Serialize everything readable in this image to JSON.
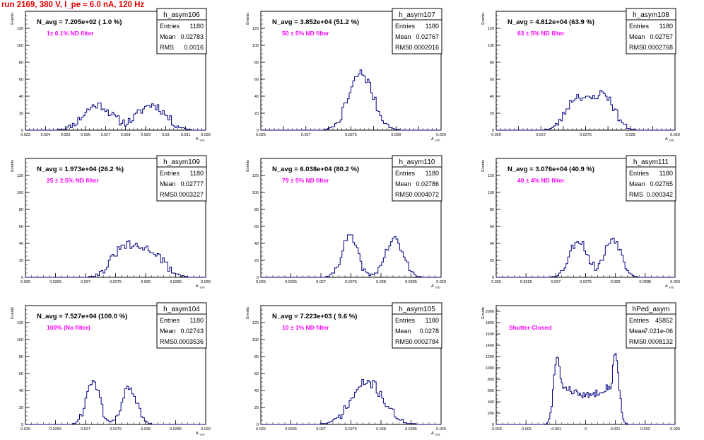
{
  "run_title": "run 2169,   380 V, I_pe ≈ 6.0 nA, 120 Hz",
  "stats_labels": {
    "entries": "Entries",
    "mean": "Mean",
    "rms": "RMS"
  },
  "colors": {
    "title": "#e00000",
    "annotation": "#ff00ff",
    "histogram": "#000080",
    "frame": "#000000"
  },
  "chart_data": [
    {
      "type": "histogram",
      "name": "h_asym106",
      "n_avg": "N_avg = 7.205e+02 ( 1.0 %)",
      "annotation": "1± 0.1% ND filter",
      "entries": "1180",
      "mean": "0.02783",
      "rms": "0.0016",
      "ylabel": "Events",
      "xlabel": "A_UID",
      "xlim": [
        0.023,
        0.032
      ],
      "ylim": [
        0,
        140
      ],
      "xticks": [
        "0.023",
        "0.024",
        "0.025",
        "0.026",
        "0.027",
        "0.028",
        "0.029",
        "0.03",
        "0.031",
        "0.032"
      ],
      "yticks": [
        "0",
        "20",
        "40",
        "60",
        "80",
        "100",
        "120"
      ],
      "shape": {
        "peaks": [
          [
            0.0266,
            0.0007,
            30
          ],
          [
            0.0293,
            0.0007,
            30
          ]
        ],
        "noise": 5,
        "seed": 11
      }
    },
    {
      "type": "histogram",
      "name": "h_asym107",
      "n_avg": "N_avg = 3.852e+04 (51.2 %)",
      "annotation": "50 ± 5% ND filter",
      "entries": "1180",
      "mean": "0.02767",
      "rms": "0.0002016",
      "ylabel": "Events",
      "xlabel": "A_UID",
      "xlim": [
        0.026,
        0.029
      ],
      "ylim": [
        0,
        140
      ],
      "xticks": [
        "0.026",
        "",
        "0.027",
        "",
        "0.0275",
        "",
        "0.028",
        "",
        "0.029"
      ],
      "yticks": [
        "0",
        "20",
        "40",
        "60",
        "80",
        "100",
        "120"
      ],
      "shape": {
        "peaks": [
          [
            0.02767,
            0.0002,
            67
          ]
        ],
        "noise": 6,
        "seed": 7
      }
    },
    {
      "type": "histogram",
      "name": "h_asym108",
      "n_avg": "N_avg = 4.812e+04 (63.9 %)",
      "annotation": "63 ± 5% ND filter",
      "entries": "1180",
      "mean": "0.02757",
      "rms": "0.0002768",
      "ylabel": "Events",
      "xlabel": "A_UID",
      "xlim": [
        0.026,
        0.029
      ],
      "ylim": [
        0,
        140
      ],
      "xticks": [
        "0.026",
        "",
        "0.027",
        "",
        "0.0275",
        "",
        "0.028",
        "",
        "0.029"
      ],
      "yticks": [
        "0",
        "20",
        "40",
        "60",
        "80",
        "100",
        "120"
      ],
      "shape": {
        "peaks": [
          [
            0.02735,
            0.00018,
            38
          ],
          [
            0.0278,
            0.00018,
            42
          ]
        ],
        "noise": 5,
        "seed": 23
      }
    },
    {
      "type": "histogram",
      "name": "h_asym109",
      "n_avg": "N_avg = 1.973e+04 (26.2 %)",
      "annotation": "25 ± 2.5% ND filter",
      "entries": "1180",
      "mean": "0.02777",
      "rms": "0.0003227",
      "ylabel": "Events",
      "xlabel": "A_UID",
      "xlim": [
        0.026,
        0.029
      ],
      "ylim": [
        0,
        140
      ],
      "xticks": [
        "0.026",
        "0.0265",
        "0.027",
        "0.0275",
        "0.028",
        "0.0285",
        "0.029"
      ],
      "yticks": [
        "0",
        "20",
        "40",
        "60",
        "80",
        "100",
        "120"
      ],
      "shape": {
        "peaks": [
          [
            0.02763,
            0.0002,
            33
          ],
          [
            0.02808,
            0.00022,
            30
          ]
        ],
        "noise": 5,
        "seed": 31
      }
    },
    {
      "type": "histogram",
      "name": "h_asym110",
      "n_avg": "N_avg = 6.038e+04 (80.2 %)",
      "annotation": "79 ± 5% ND filter",
      "entries": "1180",
      "mean": "0.02786",
      "rms": "0.0004072",
      "ylabel": "Events",
      "xlabel": "A_UID",
      "xlim": [
        0.026,
        0.029
      ],
      "ylim": [
        0,
        140
      ],
      "xticks": [
        "0.026",
        "0.0265",
        "0.027",
        "0.0275",
        "0.028",
        "0.0285",
        "0.029"
      ],
      "yticks": [
        "0",
        "20",
        "40",
        "60",
        "80",
        "100",
        "120"
      ],
      "shape": {
        "peaks": [
          [
            0.02748,
            0.00013,
            48
          ],
          [
            0.02822,
            0.00015,
            44
          ]
        ],
        "noise": 5,
        "seed": 41
      }
    },
    {
      "type": "histogram",
      "name": "h_asym111",
      "n_avg": "N_avg = 3.076e+04 (40.9 %)",
      "annotation": "40 ± 4% ND filter",
      "entries": "1180",
      "mean": "0.02765",
      "rms": "0.000342",
      "ylabel": "Events",
      "xlabel": "A_UID",
      "xlim": [
        0.026,
        0.029
      ],
      "ylim": [
        0,
        140
      ],
      "xticks": [
        "0.026",
        "0.0265",
        "0.027",
        "0.0275",
        "0.028",
        "0.0285",
        "0.029"
      ],
      "yticks": [
        "0",
        "20",
        "40",
        "60",
        "80",
        "100",
        "120"
      ],
      "shape": {
        "peaks": [
          [
            0.02738,
            0.00015,
            44
          ],
          [
            0.02796,
            0.00014,
            46
          ]
        ],
        "noise": 5,
        "seed": 53
      }
    },
    {
      "type": "histogram",
      "name": "h_asym104",
      "n_avg": "N_avg = 7.527e+04 (100.0 %)",
      "annotation": "100% (No filter)",
      "entries": "1180",
      "mean": "0.02743",
      "rms": "0.0003536",
      "ylabel": "Events",
      "xlabel": "A_UID",
      "xlim": [
        0.026,
        0.029
      ],
      "ylim": [
        0,
        140
      ],
      "xticks": [
        "0.026",
        "0.0265",
        "0.027",
        "0.0275",
        "0.028",
        "0.0285",
        "0.029"
      ],
      "yticks": [
        "0",
        "20",
        "40",
        "60",
        "80",
        "100",
        "120"
      ],
      "shape": {
        "peaks": [
          [
            0.02712,
            0.00011,
            52
          ],
          [
            0.02773,
            0.00012,
            44
          ]
        ],
        "noise": 5,
        "seed": 61
      }
    },
    {
      "type": "histogram",
      "name": "h_asym105",
      "n_avg": "N_avg = 7.223e+03 ( 9.6 %)",
      "annotation": "10 ± 1% ND filter",
      "entries": "1180",
      "mean": "0.0278",
      "rms": "0.0002784",
      "ylabel": "Events",
      "xlabel": "A_UID",
      "xlim": [
        0.026,
        0.029
      ],
      "ylim": [
        0,
        140
      ],
      "xticks": [
        "0.026",
        "0.0265",
        "0.027",
        "0.0275",
        "0.028",
        "0.0285",
        "0.029"
      ],
      "yticks": [
        "0",
        "20",
        "40",
        "60",
        "80",
        "100",
        "120"
      ],
      "shape": {
        "peaks": [
          [
            0.02778,
            0.00026,
            50
          ]
        ],
        "noise": 6,
        "seed": 71
      }
    },
    {
      "type": "histogram",
      "name": "hPed_asym",
      "n_avg": "",
      "annotation": "Shutter Closed",
      "entries": "45852",
      "mean": "-7.021e-06",
      "rms": "0.0008132",
      "ylabel": "Events",
      "xlabel": "",
      "xlim": [
        -0.003,
        0.003
      ],
      "ylim": [
        0,
        2100
      ],
      "xticks": [
        "-0.003",
        "-0.002",
        "-0.001",
        "0",
        "0.001",
        "0.002",
        "0.003"
      ],
      "yticks": [
        "0",
        "200",
        "400",
        "600",
        "800",
        "1000",
        "1200",
        "1400",
        "1600",
        "1800",
        "2000"
      ],
      "shape": {
        "peaks": [
          [
            -0.00095,
            0.00012,
            1200
          ],
          [
            0.001,
            0.00012,
            1250
          ]
        ],
        "bridge": [
          -0.00095,
          0.001,
          600
        ],
        "noise": 60,
        "seed": 83
      }
    }
  ]
}
